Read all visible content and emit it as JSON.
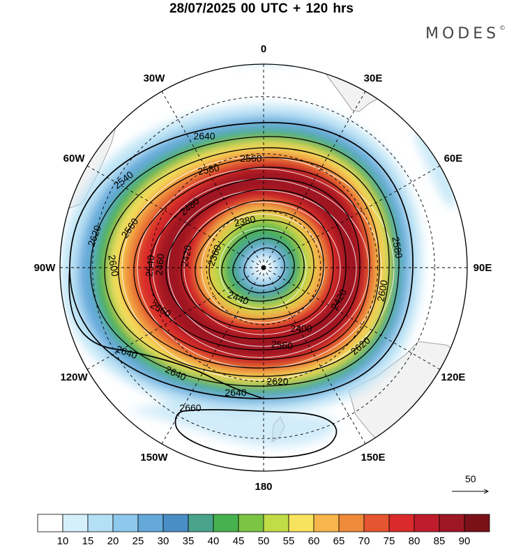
{
  "title": "28/07/2025  00 UTC  + 120 hrs",
  "brand": "MODES",
  "brand_mark": "©",
  "reference_vector": {
    "label": "50",
    "value": 50
  },
  "longitude_labels": [
    {
      "text": "0",
      "lon": 0
    },
    {
      "text": "30E",
      "lon": 30
    },
    {
      "text": "60E",
      "lon": 60
    },
    {
      "text": "90E",
      "lon": 90
    },
    {
      "text": "120E",
      "lon": 120
    },
    {
      "text": "150E",
      "lon": 150
    },
    {
      "text": "180",
      "lon": 180
    },
    {
      "text": "150W",
      "lon": -150
    },
    {
      "text": "120W",
      "lon": -120
    },
    {
      "text": "90W",
      "lon": -90
    },
    {
      "text": "60W",
      "lon": -60
    },
    {
      "text": "30W",
      "lon": -30
    }
  ],
  "chart_data": {
    "type": "heatmap",
    "projection": "south-polar-stereographic",
    "title": "28/07/2025  00 UTC  + 120 hrs",
    "fill_variable": "wind speed",
    "contour_variable": "geopotential height",
    "colorbar": {
      "levels": [
        10,
        15,
        20,
        25,
        30,
        35,
        40,
        45,
        50,
        55,
        60,
        65,
        70,
        75,
        80,
        85,
        90
      ],
      "colors": [
        "#ffffff",
        "#d6f0fb",
        "#b4e0f5",
        "#8ec8ec",
        "#65a9db",
        "#4a8ec6",
        "#4aa48c",
        "#48b14f",
        "#7cc444",
        "#c2dc48",
        "#f7e35d",
        "#f7b54b",
        "#ef8a3a",
        "#e5552f",
        "#d92b2b",
        "#bf1d2b",
        "#9e1724",
        "#7a1119"
      ]
    },
    "contours": [
      {
        "level": 2360,
        "label": "2360"
      },
      {
        "level": 2380,
        "label": "2380"
      },
      {
        "level": 2400,
        "label": "2400"
      },
      {
        "level": 2420,
        "label": "2420"
      },
      {
        "level": 2440,
        "label": "2440"
      },
      {
        "level": 2460,
        "label": "2460"
      },
      {
        "level": 2480,
        "label": "2480"
      },
      {
        "level": 2540,
        "label": "2540"
      },
      {
        "level": 2560,
        "label": "2560"
      },
      {
        "level": 2580,
        "label": "2580"
      },
      {
        "level": 2600,
        "label": "2600"
      },
      {
        "level": 2620,
        "label": "2620"
      },
      {
        "level": 2640,
        "label": "2640"
      },
      {
        "level": 2660,
        "label": "2660"
      }
    ],
    "wind_vector_reference": 50
  }
}
